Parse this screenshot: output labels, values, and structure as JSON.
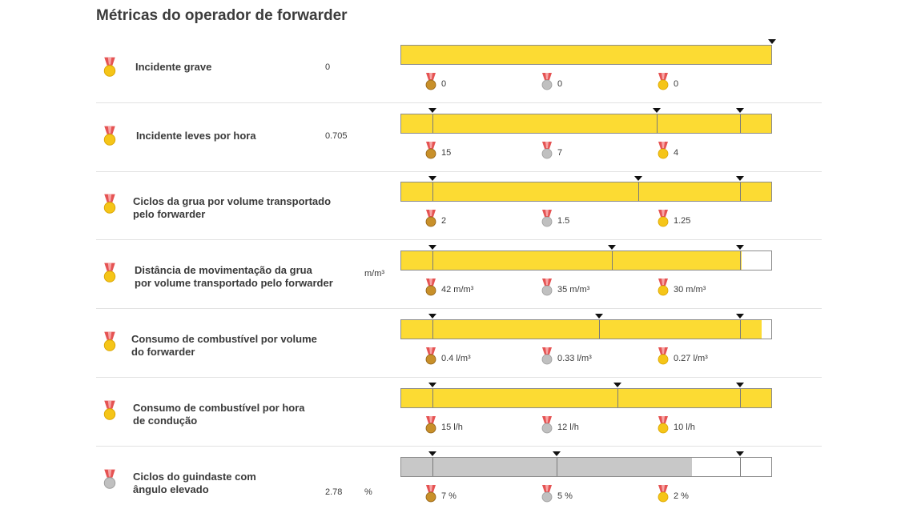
{
  "page": {
    "title": "Métricas do operador de forwarder"
  },
  "colors": {
    "bar_fill": "#fcdb33",
    "bar_fill_grey": "#c8c8c8",
    "gold": "#f5c518",
    "silver": "#c0c0c0",
    "bronze": "#c8902a",
    "ribbon": "#e55353",
    "ribbon_light": "#f7a5a5"
  },
  "metrics": [
    {
      "label_lines": [
        "Incidente grave",
        ""
      ],
      "value": "0",
      "unit": "",
      "medal": "gold",
      "progress": 1.0,
      "fill_color": "yellow",
      "marker_positions": [
        1.0
      ],
      "thresholds": [
        {
          "medal": "bronze",
          "text": "0"
        },
        {
          "medal": "silver",
          "text": "0"
        },
        {
          "medal": "gold",
          "text": "0"
        }
      ]
    },
    {
      "label_lines": [
        "Incidente leves por hora",
        ""
      ],
      "value": "0.705",
      "unit": "",
      "medal": "gold",
      "progress": 1.0,
      "fill_color": "yellow",
      "marker_positions": [
        0.085,
        0.69,
        0.915
      ],
      "thresholds": [
        {
          "medal": "bronze",
          "text": "15"
        },
        {
          "medal": "silver",
          "text": "7"
        },
        {
          "medal": "gold",
          "text": "4"
        }
      ]
    },
    {
      "label_lines": [
        "Ciclos da grua por volume transportado",
        "pelo forwarder"
      ],
      "value": "",
      "unit": "",
      "medal": "gold",
      "progress": 1.0,
      "fill_color": "yellow",
      "marker_positions": [
        0.085,
        0.64,
        0.915
      ],
      "thresholds": [
        {
          "medal": "bronze",
          "text": "2"
        },
        {
          "medal": "silver",
          "text": "1.5"
        },
        {
          "medal": "gold",
          "text": "1.25"
        }
      ]
    },
    {
      "label_lines": [
        "Distância de movimentação da grua",
        "por volume transportado pelo forwarder"
      ],
      "value": "",
      "unit": "m/m³",
      "medal": "gold",
      "progress": 0.92,
      "fill_color": "yellow",
      "marker_positions": [
        0.085,
        0.57,
        0.915
      ],
      "thresholds": [
        {
          "medal": "bronze",
          "text": "42 m/m³"
        },
        {
          "medal": "silver",
          "text": "35 m/m³"
        },
        {
          "medal": "gold",
          "text": "30 m/m³"
        }
      ]
    },
    {
      "label_lines": [
        "Consumo de combustível por volume",
        "do forwarder"
      ],
      "value": "",
      "unit": "",
      "medal": "gold",
      "progress": 0.975,
      "fill_color": "yellow",
      "marker_positions": [
        0.085,
        0.535,
        0.915
      ],
      "thresholds": [
        {
          "medal": "bronze",
          "text": "0.4 l/m³"
        },
        {
          "medal": "silver",
          "text": "0.33 l/m³"
        },
        {
          "medal": "gold",
          "text": "0.27 l/m³"
        }
      ]
    },
    {
      "label_lines": [
        "Consumo de combustível por hora",
        "de condução"
      ],
      "value": "",
      "unit": "",
      "medal": "gold",
      "progress": 1.0,
      "fill_color": "yellow",
      "marker_positions": [
        0.085,
        0.585,
        0.915
      ],
      "thresholds": [
        {
          "medal": "bronze",
          "text": "15 l/h"
        },
        {
          "medal": "silver",
          "text": "12 l/h"
        },
        {
          "medal": "gold",
          "text": "10 l/h"
        }
      ]
    },
    {
      "label_lines": [
        "Ciclos do guindaste com",
        "ângulo elevado"
      ],
      "value": "2.78",
      "unit": "%",
      "medal": "silver",
      "progress": 0.785,
      "fill_color": "grey",
      "marker_positions": [
        0.085,
        0.42,
        0.915
      ],
      "thresholds": [
        {
          "medal": "bronze",
          "text": "7 %"
        },
        {
          "medal": "silver",
          "text": "5 %"
        },
        {
          "medal": "gold",
          "text": "2 %"
        }
      ]
    }
  ]
}
